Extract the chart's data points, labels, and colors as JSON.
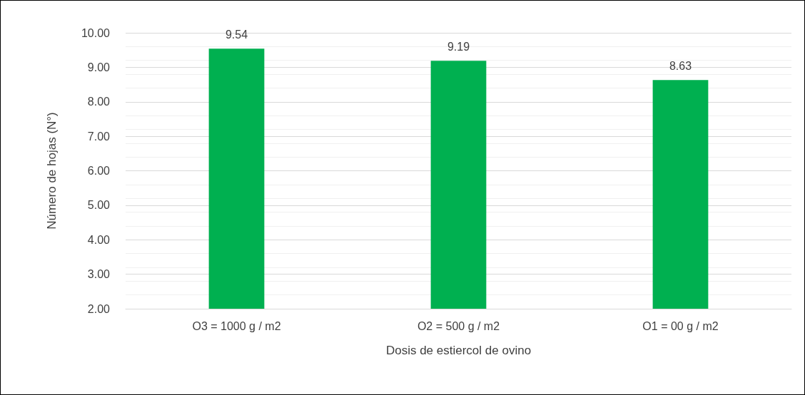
{
  "chart_data": {
    "type": "bar",
    "xlabel": "Dosis de estiercol de ovino",
    "ylabel": "Número de hojas (N°)",
    "categories": [
      "O3 = 1000 g / m2",
      "O2 = 500 g / m2",
      "O1 = 00 g / m2"
    ],
    "values": [
      9.54,
      9.19,
      8.63
    ],
    "color": "#00b050",
    "ylim": [
      2,
      10
    ],
    "yticks": [
      {
        "value": 2,
        "label": "2.00"
      },
      {
        "value": 3,
        "label": "3.00"
      },
      {
        "value": 4,
        "label": "4.00"
      },
      {
        "value": 5,
        "label": "5.00"
      },
      {
        "value": 6,
        "label": "6.00"
      },
      {
        "value": 7,
        "label": "7.00"
      },
      {
        "value": 8,
        "label": "8.00"
      },
      {
        "value": 9,
        "label": "9.00"
      },
      {
        "value": 10,
        "label": "10.00"
      }
    ],
    "grid": "y",
    "data_labels": true
  }
}
